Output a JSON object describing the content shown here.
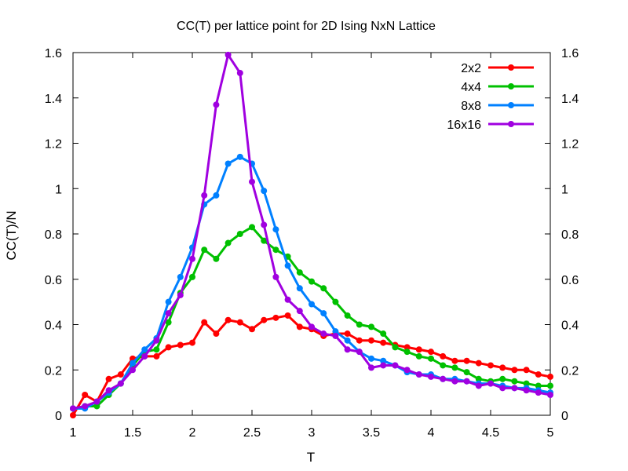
{
  "chart_data": {
    "type": "line",
    "title": "CC(T) per lattice point for 2D Ising NxN Lattice",
    "xlabel": "T",
    "ylabel": "CC(T)/N",
    "xlim": [
      1,
      5
    ],
    "ylim": [
      0,
      1.6
    ],
    "xticks": [
      1,
      1.5,
      2,
      2.5,
      3,
      3.5,
      4,
      4.5,
      5
    ],
    "xtick_labels": [
      "1",
      "1.5",
      "2",
      "2.5",
      "3",
      "3.5",
      "4",
      "4.5",
      "5"
    ],
    "yticks": [
      0,
      0.2,
      0.4,
      0.6,
      0.8,
      1,
      1.2,
      1.4,
      1.6
    ],
    "ytick_labels": [
      "0",
      "0.2",
      "0.4",
      "0.6",
      "0.8",
      "1",
      "1.2",
      "1.4",
      "1.6"
    ],
    "right_axis_mirrored": true,
    "grid": false,
    "legend_position": "top-right",
    "x": [
      1.0,
      1.1,
      1.2,
      1.3,
      1.4,
      1.5,
      1.6,
      1.7,
      1.8,
      1.9,
      2.0,
      2.1,
      2.2,
      2.3,
      2.4,
      2.5,
      2.6,
      2.7,
      2.8,
      2.9,
      3.0,
      3.1,
      3.2,
      3.3,
      3.4,
      3.5,
      3.6,
      3.7,
      3.8,
      3.9,
      4.0,
      4.1,
      4.2,
      4.3,
      4.4,
      4.5,
      4.6,
      4.7,
      4.8,
      4.9,
      5.0
    ],
    "series": [
      {
        "name": "2x2",
        "color": "#ff0000",
        "values": [
          0.0,
          0.09,
          0.06,
          0.16,
          0.18,
          0.25,
          0.26,
          0.26,
          0.3,
          0.31,
          0.32,
          0.41,
          0.36,
          0.42,
          0.41,
          0.38,
          0.42,
          0.43,
          0.44,
          0.39,
          0.38,
          0.35,
          0.36,
          0.36,
          0.33,
          0.33,
          0.32,
          0.31,
          0.3,
          0.29,
          0.28,
          0.26,
          0.24,
          0.24,
          0.23,
          0.22,
          0.21,
          0.2,
          0.2,
          0.18,
          0.17
        ]
      },
      {
        "name": "4x4",
        "color": "#00c000",
        "values": [
          0.03,
          0.04,
          0.04,
          0.09,
          0.14,
          0.22,
          0.28,
          0.29,
          0.41,
          0.54,
          0.61,
          0.73,
          0.69,
          0.76,
          0.8,
          0.83,
          0.77,
          0.73,
          0.7,
          0.63,
          0.59,
          0.56,
          0.5,
          0.44,
          0.4,
          0.39,
          0.36,
          0.3,
          0.28,
          0.26,
          0.25,
          0.22,
          0.21,
          0.19,
          0.16,
          0.15,
          0.16,
          0.15,
          0.14,
          0.13,
          0.13
        ]
      },
      {
        "name": "8x8",
        "color": "#0080ff",
        "values": [
          0.03,
          0.03,
          0.06,
          0.1,
          0.14,
          0.23,
          0.29,
          0.34,
          0.5,
          0.61,
          0.74,
          0.93,
          0.97,
          1.11,
          1.14,
          1.11,
          0.99,
          0.82,
          0.66,
          0.56,
          0.49,
          0.45,
          0.37,
          0.33,
          0.28,
          0.25,
          0.24,
          0.22,
          0.19,
          0.18,
          0.18,
          0.16,
          0.16,
          0.15,
          0.14,
          0.14,
          0.13,
          0.12,
          0.12,
          0.11,
          0.1
        ]
      },
      {
        "name": "16x16",
        "color": "#a000e0",
        "values": [
          0.03,
          0.04,
          0.06,
          0.11,
          0.14,
          0.2,
          0.26,
          0.33,
          0.45,
          0.53,
          0.69,
          0.97,
          1.37,
          1.59,
          1.51,
          1.03,
          0.84,
          0.61,
          0.51,
          0.46,
          0.39,
          0.36,
          0.35,
          0.29,
          0.28,
          0.21,
          0.22,
          0.22,
          0.2,
          0.18,
          0.17,
          0.16,
          0.15,
          0.15,
          0.13,
          0.14,
          0.12,
          0.12,
          0.11,
          0.1,
          0.09
        ]
      }
    ]
  }
}
